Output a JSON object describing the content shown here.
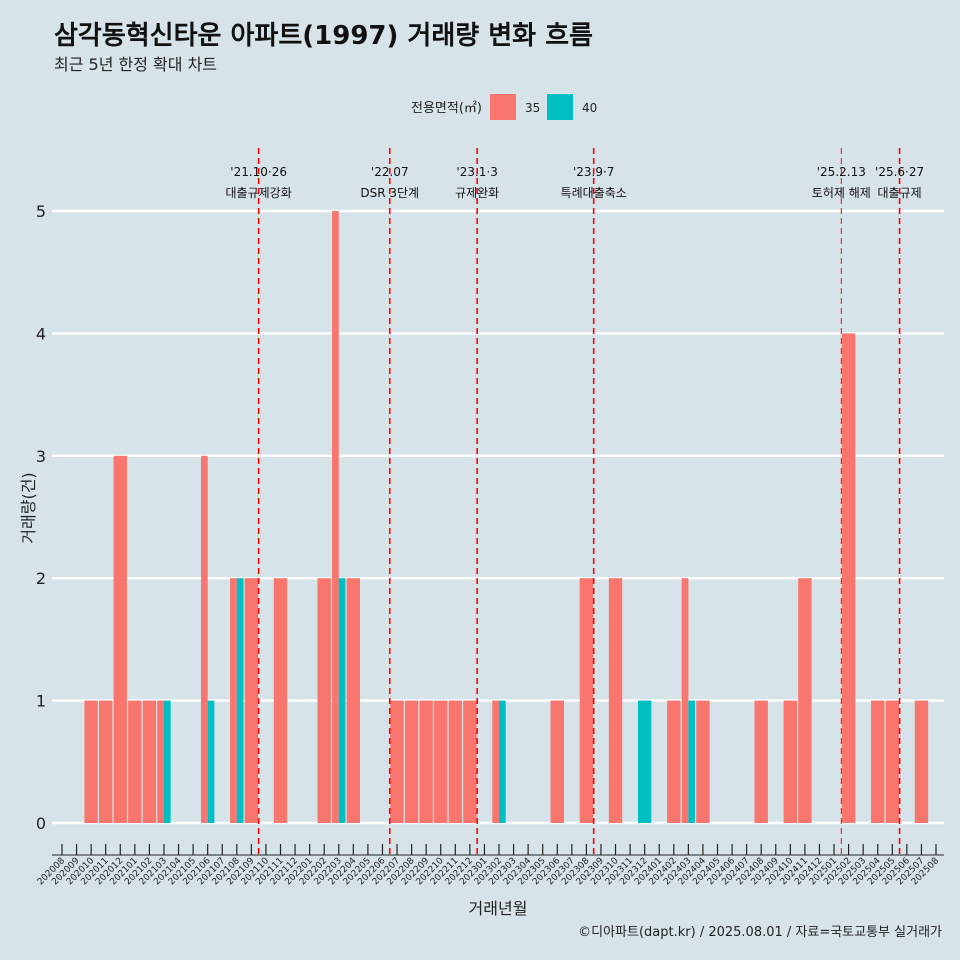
{
  "chart_data": {
    "type": "bar",
    "title": "삼각동혁신타운 아파트(1997) 거래량 변화 흐름",
    "subtitle": "최근 5년 한정 확대 차트",
    "xlabel": "거래년월",
    "ylabel": "거래량(건)",
    "caption": "©디아파트(dapt.kr) / 2025.08.01 / 자료=국토교통부 실거래가",
    "legend": {
      "title": "전용면적(㎡)",
      "position": "top"
    },
    "ylim": [
      0,
      5
    ],
    "yticks": [
      "0",
      "1",
      "2",
      "3",
      "4",
      "5"
    ],
    "categories": [
      "202008",
      "202009",
      "202010",
      "202011",
      "202012",
      "202101",
      "202102",
      "202103",
      "202104",
      "202105",
      "202106",
      "202107",
      "202108",
      "202109",
      "202110",
      "202111",
      "202112",
      "202201",
      "202202",
      "202203",
      "202204",
      "202205",
      "202206",
      "202207",
      "202208",
      "202209",
      "202210",
      "202211",
      "202212",
      "202301",
      "202302",
      "202303",
      "202304",
      "202305",
      "202306",
      "202307",
      "202308",
      "202309",
      "202310",
      "202311",
      "202312",
      "202401",
      "202402",
      "202403",
      "202404",
      "202405",
      "202406",
      "202407",
      "202408",
      "202409",
      "202410",
      "202411",
      "202412",
      "202501",
      "202502",
      "202503",
      "202504",
      "202505",
      "202506",
      "202507",
      "202508"
    ],
    "series": [
      {
        "name": "35",
        "color": "#f8766d",
        "values": [
          0,
          0,
          1,
          1,
          3,
          1,
          1,
          1,
          0,
          0,
          3,
          0,
          2,
          2,
          0,
          2,
          0,
          0,
          2,
          5,
          2,
          0,
          0,
          1,
          1,
          1,
          1,
          1,
          1,
          0,
          1,
          0,
          0,
          0,
          1,
          0,
          2,
          0,
          2,
          0,
          0,
          0,
          1,
          2,
          1,
          0,
          0,
          0,
          1,
          0,
          1,
          2,
          0,
          0,
          4,
          0,
          1,
          1,
          0,
          1,
          0
        ]
      },
      {
        "name": "40",
        "color": "#00bfc4",
        "values": [
          0,
          0,
          0,
          0,
          0,
          0,
          0,
          1,
          0,
          0,
          1,
          0,
          2,
          0,
          0,
          0,
          0,
          0,
          0,
          2,
          0,
          0,
          0,
          0,
          0,
          0,
          0,
          0,
          0,
          0,
          1,
          0,
          0,
          0,
          0,
          0,
          0,
          0,
          0,
          0,
          1,
          0,
          0,
          1,
          0,
          0,
          0,
          0,
          0,
          0,
          0,
          0,
          0,
          0,
          0,
          0,
          0,
          0,
          0,
          0,
          0
        ]
      }
    ],
    "annotations": [
      {
        "x": "202110",
        "line1": "'21.10·26",
        "line2": "대출규제강화"
      },
      {
        "x": "202207",
        "line1": "'22.07",
        "line2": "DSR 3단계"
      },
      {
        "x": "202301",
        "line1": "'23.1·3",
        "line2": "규제완화"
      },
      {
        "x": "202309",
        "line1": "'23.9·7",
        "line2": "특례대출축소"
      },
      {
        "x": "202502",
        "line1": "'25.2.13",
        "line2": "토허제 해제"
      },
      {
        "x": "202506",
        "line1": "'25.6·27",
        "line2": "대출규제"
      }
    ]
  }
}
